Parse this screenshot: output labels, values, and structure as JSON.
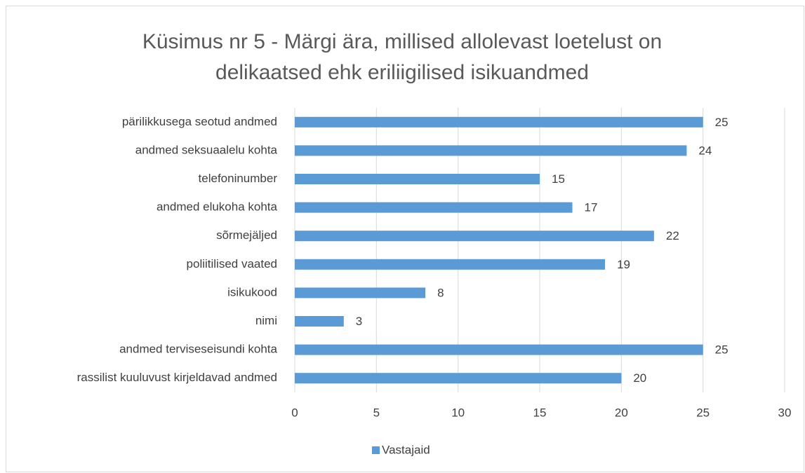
{
  "chart_data": {
    "type": "bar",
    "orientation": "horizontal",
    "title": "Küsimus nr 5 - Märgi ära, millised allolevast loetelust on delikaatsed ehk eriliigilised isikuandmed",
    "categories": [
      "pärilikkusega seotud andmed",
      "andmed seksuaalelu kohta",
      "telefoninumber",
      "andmed elukoha kohta",
      "sõrmejäljed",
      "poliitilised vaated",
      "isikukood",
      "nimi",
      "andmed terviseseisundi kohta",
      "rassilist kuuluvust kirjeldavad andmed"
    ],
    "series": [
      {
        "name": "Vastajaid",
        "color": "#5b9bd5",
        "values": [
          25,
          24,
          15,
          17,
          22,
          19,
          8,
          3,
          25,
          20
        ]
      }
    ],
    "xlim": [
      0,
      30
    ],
    "xticks": [
      0,
      5,
      10,
      15,
      20,
      25,
      30
    ],
    "grid": true,
    "legend": "bottom"
  }
}
